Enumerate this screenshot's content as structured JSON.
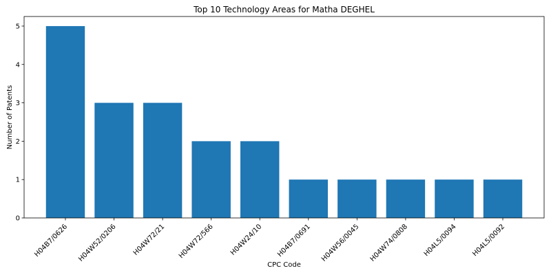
{
  "chart_data": {
    "type": "bar",
    "title": "Top 10 Technology Areas for Matha DEGHEL",
    "xlabel": "CPC Code",
    "ylabel": "Number of Patents",
    "categories": [
      "H04B7/0626",
      "H04W52/0206",
      "H04W72/21",
      "H04W72/566",
      "H04W24/10",
      "H04B7/0691",
      "H04W56/0045",
      "H04W74/0808",
      "H04L5/0094",
      "H04L5/0092"
    ],
    "values": [
      5,
      3,
      3,
      2,
      2,
      1,
      1,
      1,
      1,
      1
    ],
    "yticks": [
      0,
      1,
      2,
      3,
      4,
      5
    ],
    "ylim": [
      0,
      5.25
    ],
    "bar_color": "#1f77b4",
    "grid": false,
    "legend": "none"
  }
}
